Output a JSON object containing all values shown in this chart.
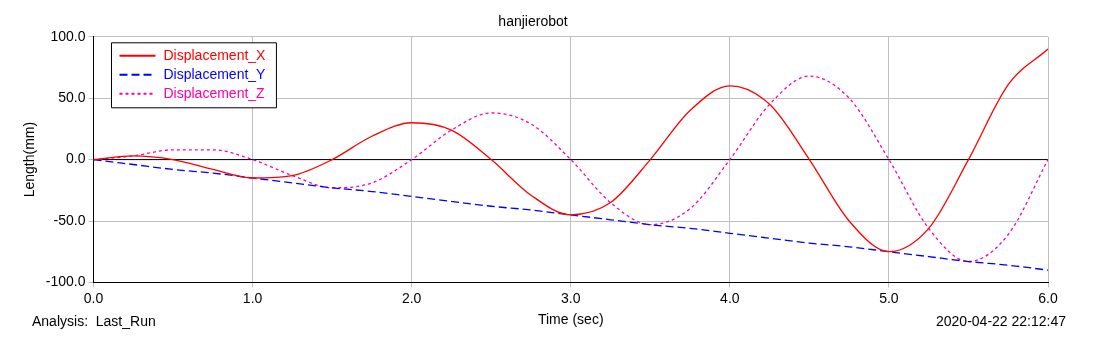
{
  "chart_data": {
    "type": "line",
    "title": "hanjierobot",
    "xlabel": "Time (sec)",
    "ylabel": "Length(mm)",
    "x": [
      0,
      0.25,
      0.5,
      0.75,
      1,
      1.25,
      1.5,
      1.75,
      2,
      2.25,
      2.5,
      2.75,
      3,
      3.25,
      3.5,
      3.75,
      4,
      4.25,
      4.5,
      4.75,
      5,
      5.25,
      5.5,
      5.75,
      6
    ],
    "series": [
      {
        "name": "Displacement_X",
        "color": "#ff0000",
        "line_style": "solid",
        "values": [
          0,
          3,
          0,
          -8,
          -15,
          -13,
          0,
          19,
          30,
          24,
          0,
          -29,
          -45,
          -35,
          0,
          40,
          60,
          45,
          0,
          -50,
          -75,
          -56,
          0,
          61,
          90
        ]
      },
      {
        "name": "Displacement_Y",
        "color": "#0000ff",
        "line_style": "dashed",
        "values": [
          0,
          -4,
          -8,
          -11,
          -15,
          -19,
          -23,
          -26,
          -30,
          -34,
          -38,
          -41,
          -45,
          -49,
          -53,
          -56,
          -60,
          -64,
          -68,
          -71,
          -75,
          -79,
          -83,
          -86,
          -90
        ]
      },
      {
        "name": "Displacement_Z",
        "color": "#ff00aa",
        "line_style": "dotted",
        "values": [
          0,
          3,
          8,
          8,
          0,
          -13,
          -23,
          -19,
          0,
          24,
          38,
          29,
          0,
          -35,
          -53,
          -40,
          0,
          45,
          68,
          50,
          0,
          -56,
          -83,
          -61,
          0
        ]
      }
    ],
    "xlim": [
      0,
      6
    ],
    "xticks": [
      {
        "value": 0,
        "label": "0.0"
      },
      {
        "value": 1,
        "label": "1.0"
      },
      {
        "value": 2,
        "label": "2.0"
      },
      {
        "value": 3,
        "label": "3.0"
      },
      {
        "value": 4,
        "label": "4.0"
      },
      {
        "value": 5,
        "label": "5.0"
      },
      {
        "value": 6,
        "label": "6.0"
      }
    ],
    "ylim": [
      -100,
      100
    ],
    "yticks": [
      {
        "value": -100,
        "label": "-100.0"
      },
      {
        "value": -50,
        "label": "-50.0"
      },
      {
        "value": 0,
        "label": "0.0"
      },
      {
        "value": 50,
        "label": "50.0"
      },
      {
        "value": 100,
        "label": "100.0"
      }
    ],
    "ref_lines": [
      {
        "axis": "y",
        "value": 0,
        "color": "#000000"
      }
    ],
    "annotations": [
      "Analysis:  Last_Run",
      "2020-04-22 22:12:47"
    ],
    "grid": true,
    "legend": "top left",
    "marker": "none"
  }
}
